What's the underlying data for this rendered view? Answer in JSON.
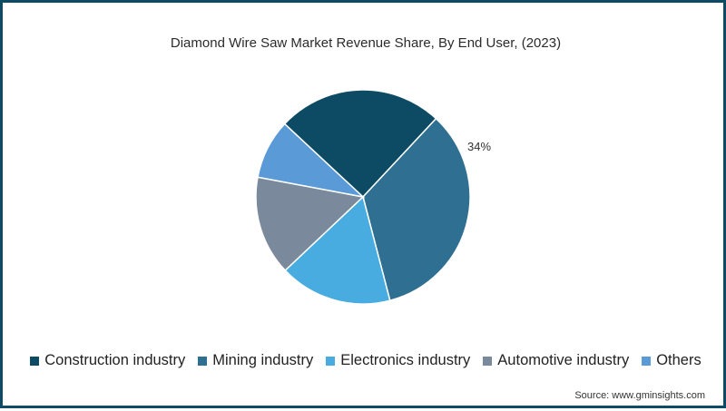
{
  "title": "Diamond Wire Saw Market Revenue Share, By End User, (2023)",
  "source": "Source: www.gminsights.com",
  "border_color": "#0d4a63",
  "chart_data": {
    "type": "pie",
    "title": "Diamond Wire Saw Market Revenue Share, By End User, (2023)",
    "categories": [
      "Construction industry",
      "Mining industry",
      "Electronics industry",
      "Automotive industry",
      "Others"
    ],
    "values": [
      25,
      34,
      17,
      15,
      9
    ],
    "colors": [
      "#0d4a63",
      "#2e6f92",
      "#48ace0",
      "#7a8a9c",
      "#5a9ad6"
    ],
    "start_angle_deg": -47,
    "annotations": [
      {
        "category": "Mining industry",
        "label": "34%"
      }
    ],
    "legend_position": "bottom"
  },
  "legend": [
    {
      "label": "Construction industry",
      "color": "#0d4a63"
    },
    {
      "label": "Mining industry",
      "color": "#2e6f92"
    },
    {
      "label": "Electronics industry",
      "color": "#48ace0"
    },
    {
      "label": "Automotive industry",
      "color": "#7a8a9c"
    },
    {
      "label": "Others",
      "color": "#5a9ad6"
    }
  ]
}
